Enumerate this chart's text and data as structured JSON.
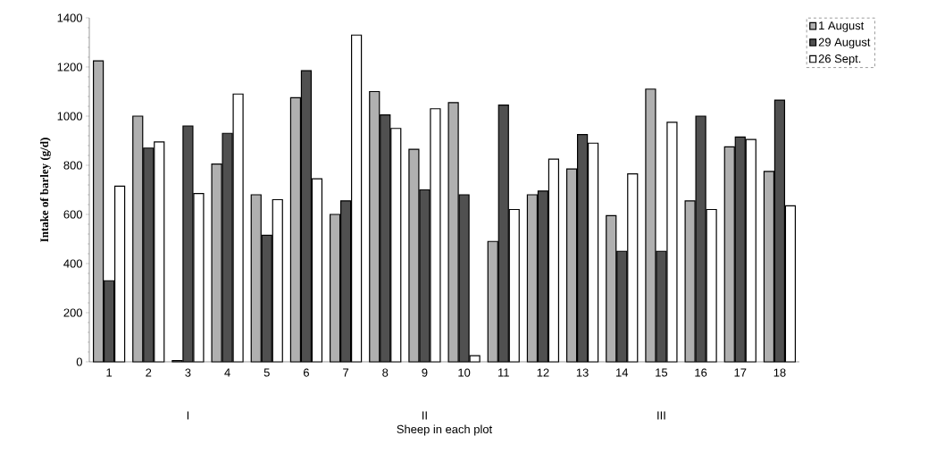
{
  "chart_data": {
    "type": "bar",
    "xlabel": "Sheep in each plot",
    "ylabel": "Intake of barley (g/d)",
    "categories": [
      "1",
      "2",
      "3",
      "4",
      "5",
      "6",
      "7",
      "8",
      "9",
      "10",
      "11",
      "12",
      "13",
      "14",
      "15",
      "16",
      "17",
      "18"
    ],
    "series": [
      {
        "name": "1  August",
        "color": "#b0b0b0",
        "values": [
          1225,
          1000,
          5,
          805,
          680,
          1075,
          600,
          1100,
          865,
          1055,
          490,
          680,
          785,
          595,
          1110,
          655,
          875,
          775
        ]
      },
      {
        "name": "29 August",
        "color": "#505050",
        "values": [
          330,
          870,
          960,
          930,
          515,
          1185,
          655,
          1005,
          700,
          680,
          1045,
          695,
          925,
          450,
          450,
          1000,
          915,
          1065
        ]
      },
      {
        "name": "26 Sept.",
        "color": "#ffffff",
        "values": [
          715,
          895,
          685,
          1090,
          660,
          745,
          1330,
          950,
          1030,
          25,
          620,
          825,
          890,
          765,
          975,
          620,
          905,
          635
        ]
      }
    ],
    "annotations": [
      "I",
      "II",
      "III"
    ],
    "ylim": [
      0,
      1400
    ],
    "yticks": [
      0,
      200,
      400,
      600,
      800,
      1000,
      1200,
      1400
    ],
    "grid": false,
    "legend": "top right"
  }
}
